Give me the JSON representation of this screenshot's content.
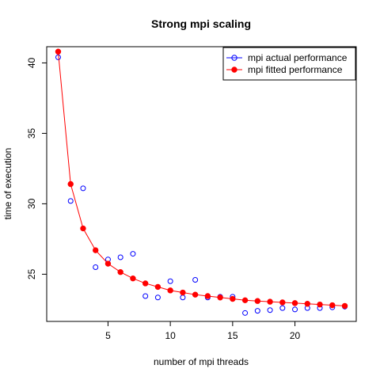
{
  "chart_data": {
    "type": "scatter",
    "title": "Strong mpi scaling",
    "xlabel": "number of mpi threads",
    "ylabel": "time of execution",
    "xlim": [
      0.08,
      24.92
    ],
    "ylim": [
      21.65,
      41.15
    ],
    "x_ticks": [
      5,
      10,
      15,
      20
    ],
    "y_ticks": [
      25,
      30,
      35,
      40
    ],
    "grid": false,
    "legend_position": "top-right",
    "series": [
      {
        "name": "mpi actual performance",
        "color": "#0000ff",
        "marker": "open-circle",
        "line": false,
        "x": [
          1,
          2,
          3,
          4,
          5,
          6,
          7,
          8,
          9,
          10,
          11,
          12,
          13,
          14,
          15,
          16,
          17,
          18,
          19,
          20,
          21,
          22,
          23,
          24
        ],
        "y": [
          40.4,
          30.2,
          31.1,
          25.5,
          26.05,
          26.2,
          26.45,
          23.45,
          23.35,
          24.5,
          23.35,
          24.6,
          23.35,
          23.4,
          23.4,
          22.25,
          22.4,
          22.45,
          22.6,
          22.5,
          22.6,
          22.6,
          22.65,
          22.7
        ]
      },
      {
        "name": "mpi fitted performance",
        "color": "#ff0000",
        "marker": "filled-circle",
        "line": true,
        "x": [
          1,
          2,
          3,
          4,
          5,
          6,
          7,
          8,
          9,
          10,
          11,
          12,
          13,
          14,
          15,
          16,
          17,
          18,
          19,
          20,
          21,
          22,
          23,
          24
        ],
        "y": [
          40.8,
          31.4,
          28.25,
          26.7,
          25.75,
          25.15,
          24.7,
          24.35,
          24.1,
          23.85,
          23.7,
          23.55,
          23.45,
          23.35,
          23.25,
          23.15,
          23.1,
          23.05,
          23.0,
          22.95,
          22.9,
          22.85,
          22.8,
          22.75
        ]
      }
    ]
  }
}
